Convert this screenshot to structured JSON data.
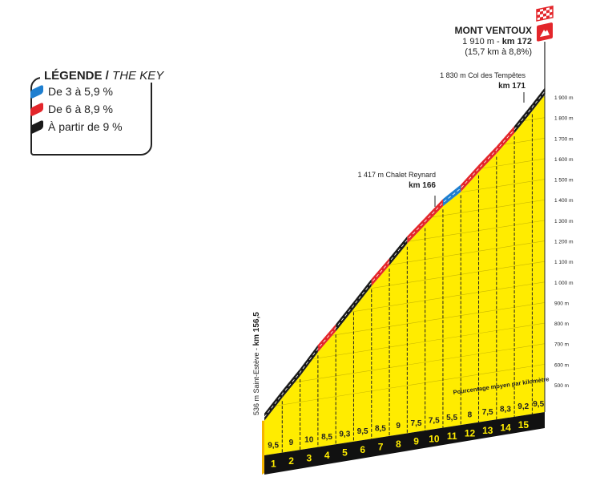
{
  "legend": {
    "title": "LÉGENDE",
    "title_en": "THE KEY",
    "items": [
      {
        "label": "De 3 à 5,9 %",
        "color": "#1e7fd0"
      },
      {
        "label": "De 6 à 8,9 %",
        "color": "#e3262b"
      },
      {
        "label": "À partir de 9 %",
        "color": "#1a1a1a"
      }
    ]
  },
  "summit": {
    "name": "MONT VENTOUX",
    "alt": "1 910 m - ",
    "km": "km 172",
    "stats": "(15,7 km à 8,8%)"
  },
  "waypoints": [
    {
      "label": "1 830 m Col des Tempêtes",
      "km": "km 171"
    },
    {
      "label": "1 417 m Chalet Reynard",
      "km": "km 166"
    }
  ],
  "start": {
    "label": "536 m Saint-Estève - ",
    "km": "km 156,5"
  },
  "chart_data": {
    "type": "area",
    "title": "Mont Ventoux",
    "start_elevation": 536,
    "summit_elevation": 1910,
    "length_km": 15.7,
    "km_labels": [
      "1",
      "2",
      "3",
      "4",
      "5",
      "6",
      "7",
      "8",
      "9",
      "10",
      "11",
      "12",
      "13",
      "14",
      "15"
    ],
    "gradients": [
      9.5,
      9,
      10,
      8.5,
      9.3,
      9.5,
      8.5,
      9,
      7.5,
      7.5,
      5.5,
      8,
      7.5,
      8.3,
      9.2,
      9.5
    ],
    "gradient_labels": [
      "9,5",
      "9",
      "10",
      "8,5",
      "9,3",
      "9,5",
      "8,5",
      "9",
      "7,5",
      "7,5",
      "5,5",
      "8",
      "7,5",
      "8,3",
      "9,2",
      "9,5"
    ],
    "gradient_caption": "Pourcentage moyen par kilomètre",
    "y_ticks": [
      "500 m",
      "600 m",
      "700 m",
      "800 m",
      "900 m",
      "1 000 m",
      "1 100 m",
      "1 200 m",
      "1 300 m",
      "1 400 m",
      "1 500 m",
      "1 600 m",
      "1 700 m",
      "1 800 m",
      "1 900 m"
    ],
    "ylim": [
      500,
      1900
    ],
    "colors": {
      "fill": "#ffec00",
      "low": "#1e7fd0",
      "mid": "#e3262b",
      "high": "#1a1a1a"
    }
  }
}
